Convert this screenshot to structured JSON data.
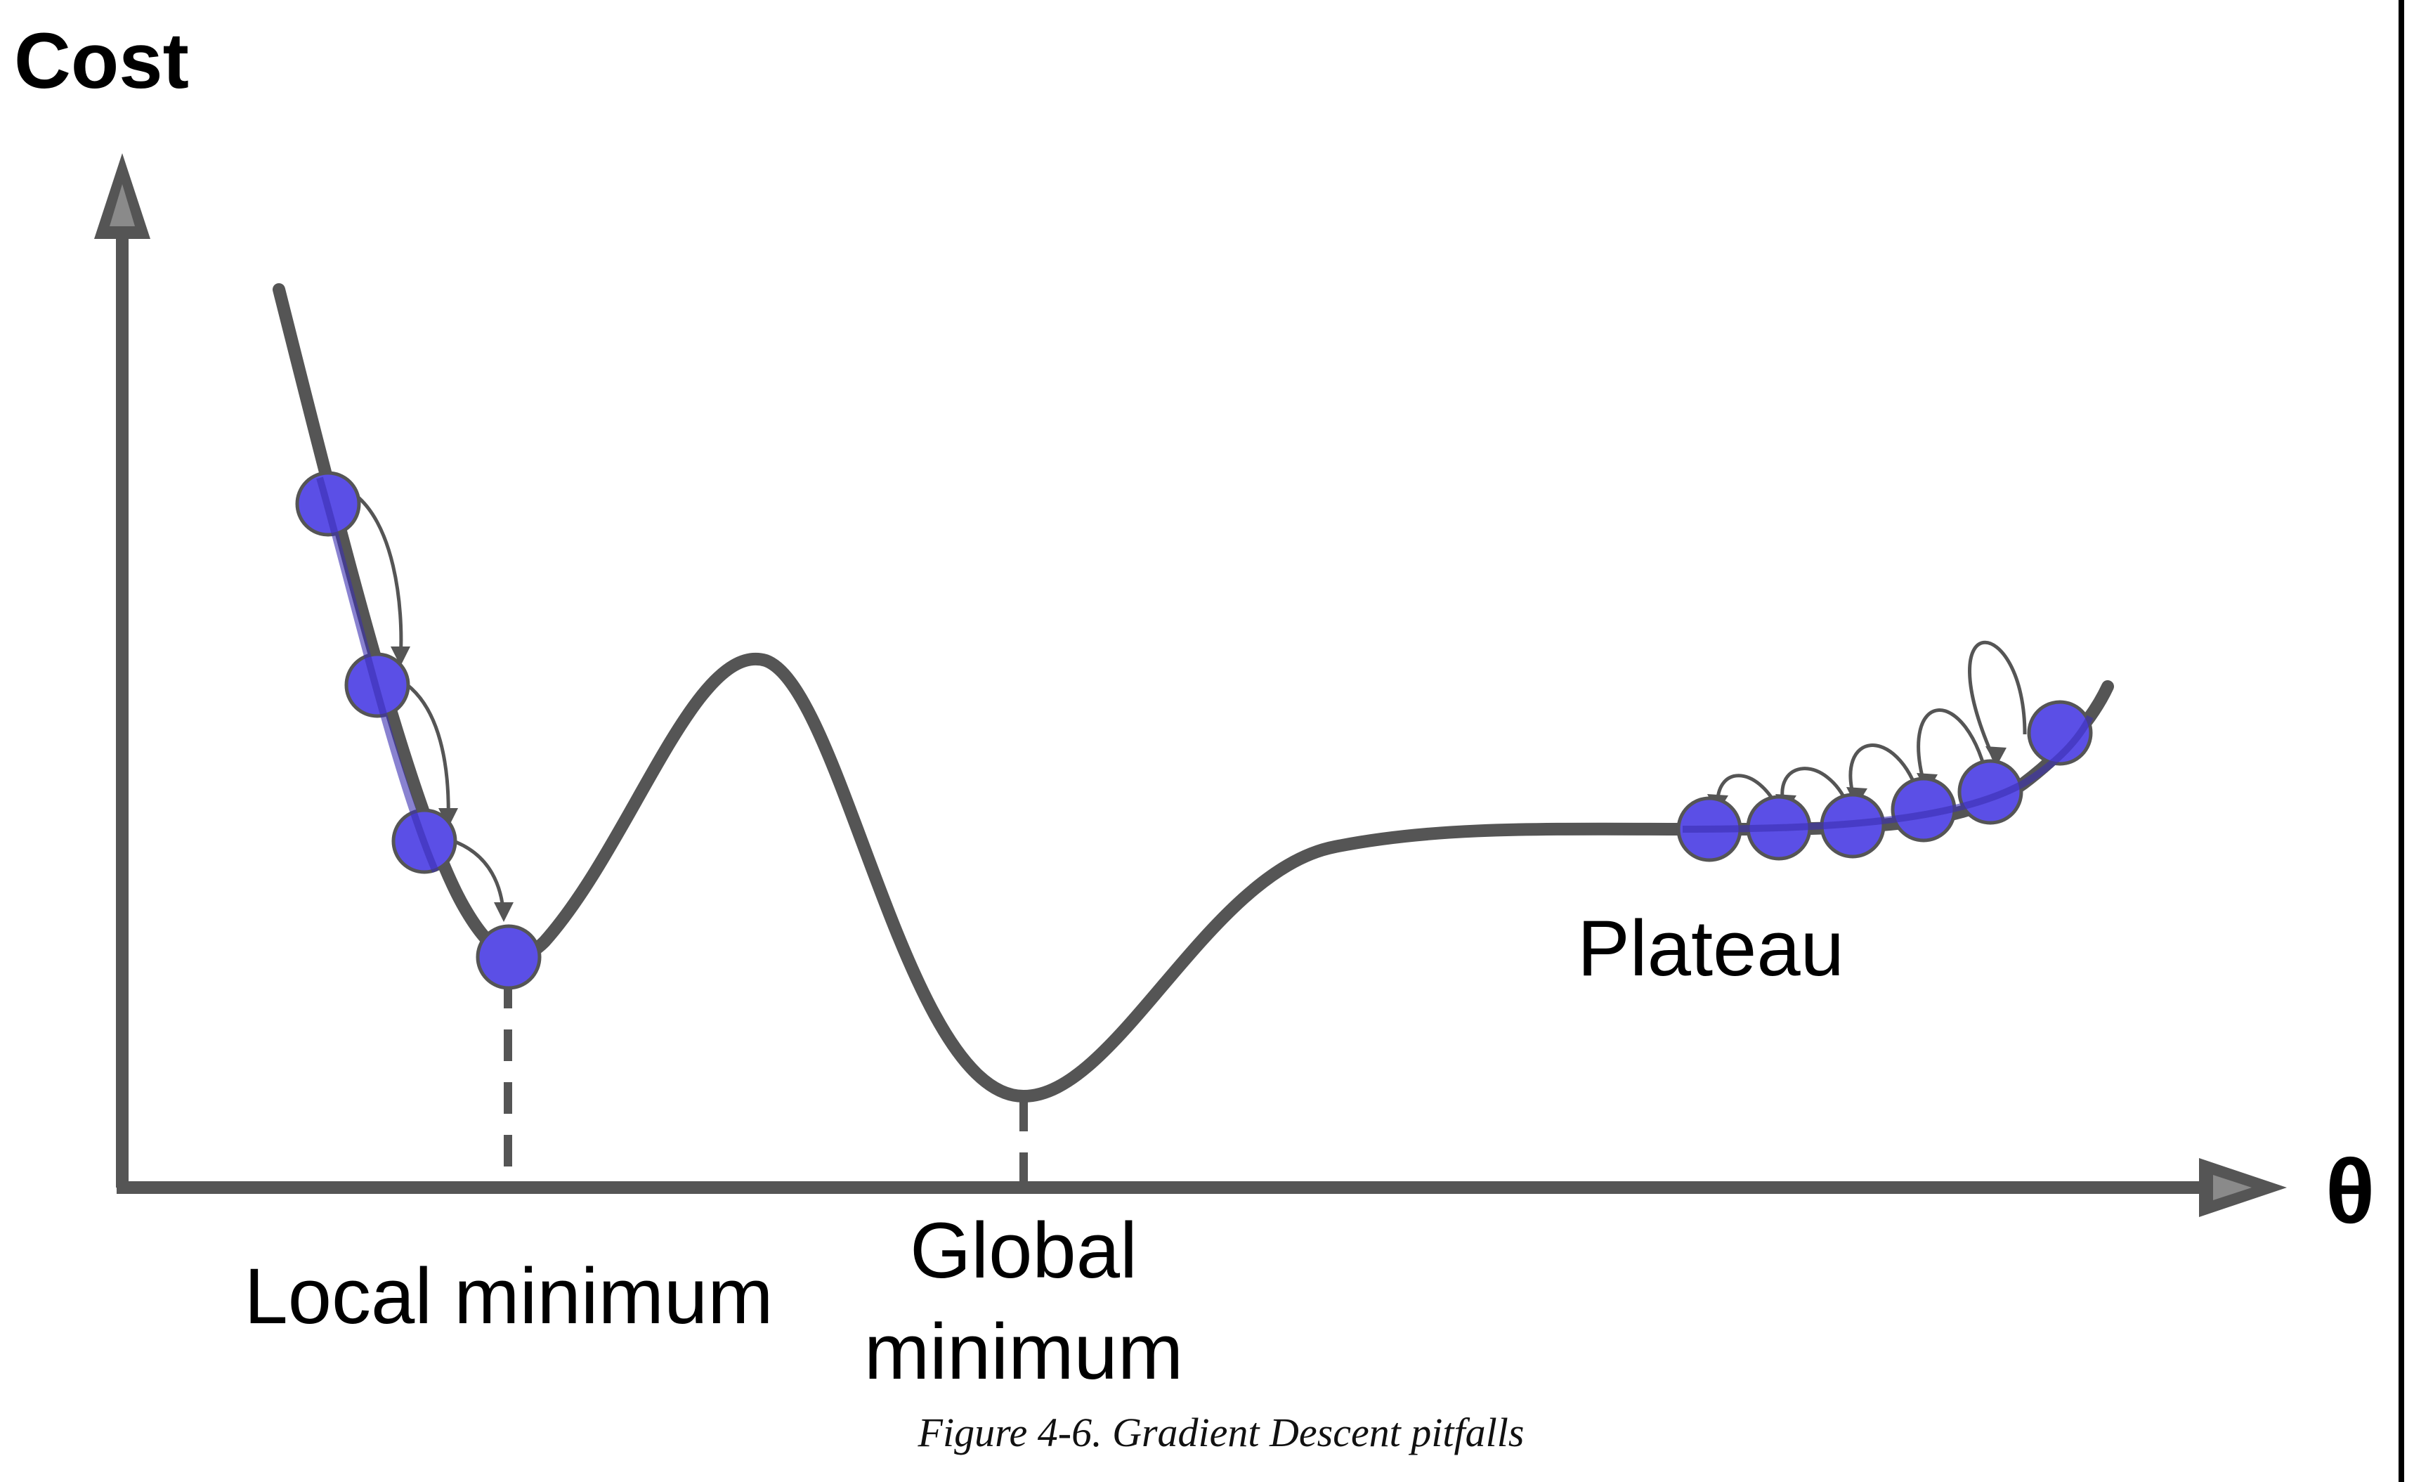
{
  "figure": {
    "y_axis_label": "Cost",
    "x_axis_label": "θ",
    "labels": {
      "local_minimum": "Local minimum",
      "global_minimum_line1": "Global",
      "global_minimum_line2": "minimum",
      "plateau": "Plateau"
    },
    "caption": "Figure 4-6. Gradient Descent pitfalls"
  },
  "colors": {
    "curve": "#555555",
    "axis": "#555555",
    "ball_fill": "#5b4fe6",
    "ball_stroke": "#555555",
    "arrow": "#555555"
  }
}
